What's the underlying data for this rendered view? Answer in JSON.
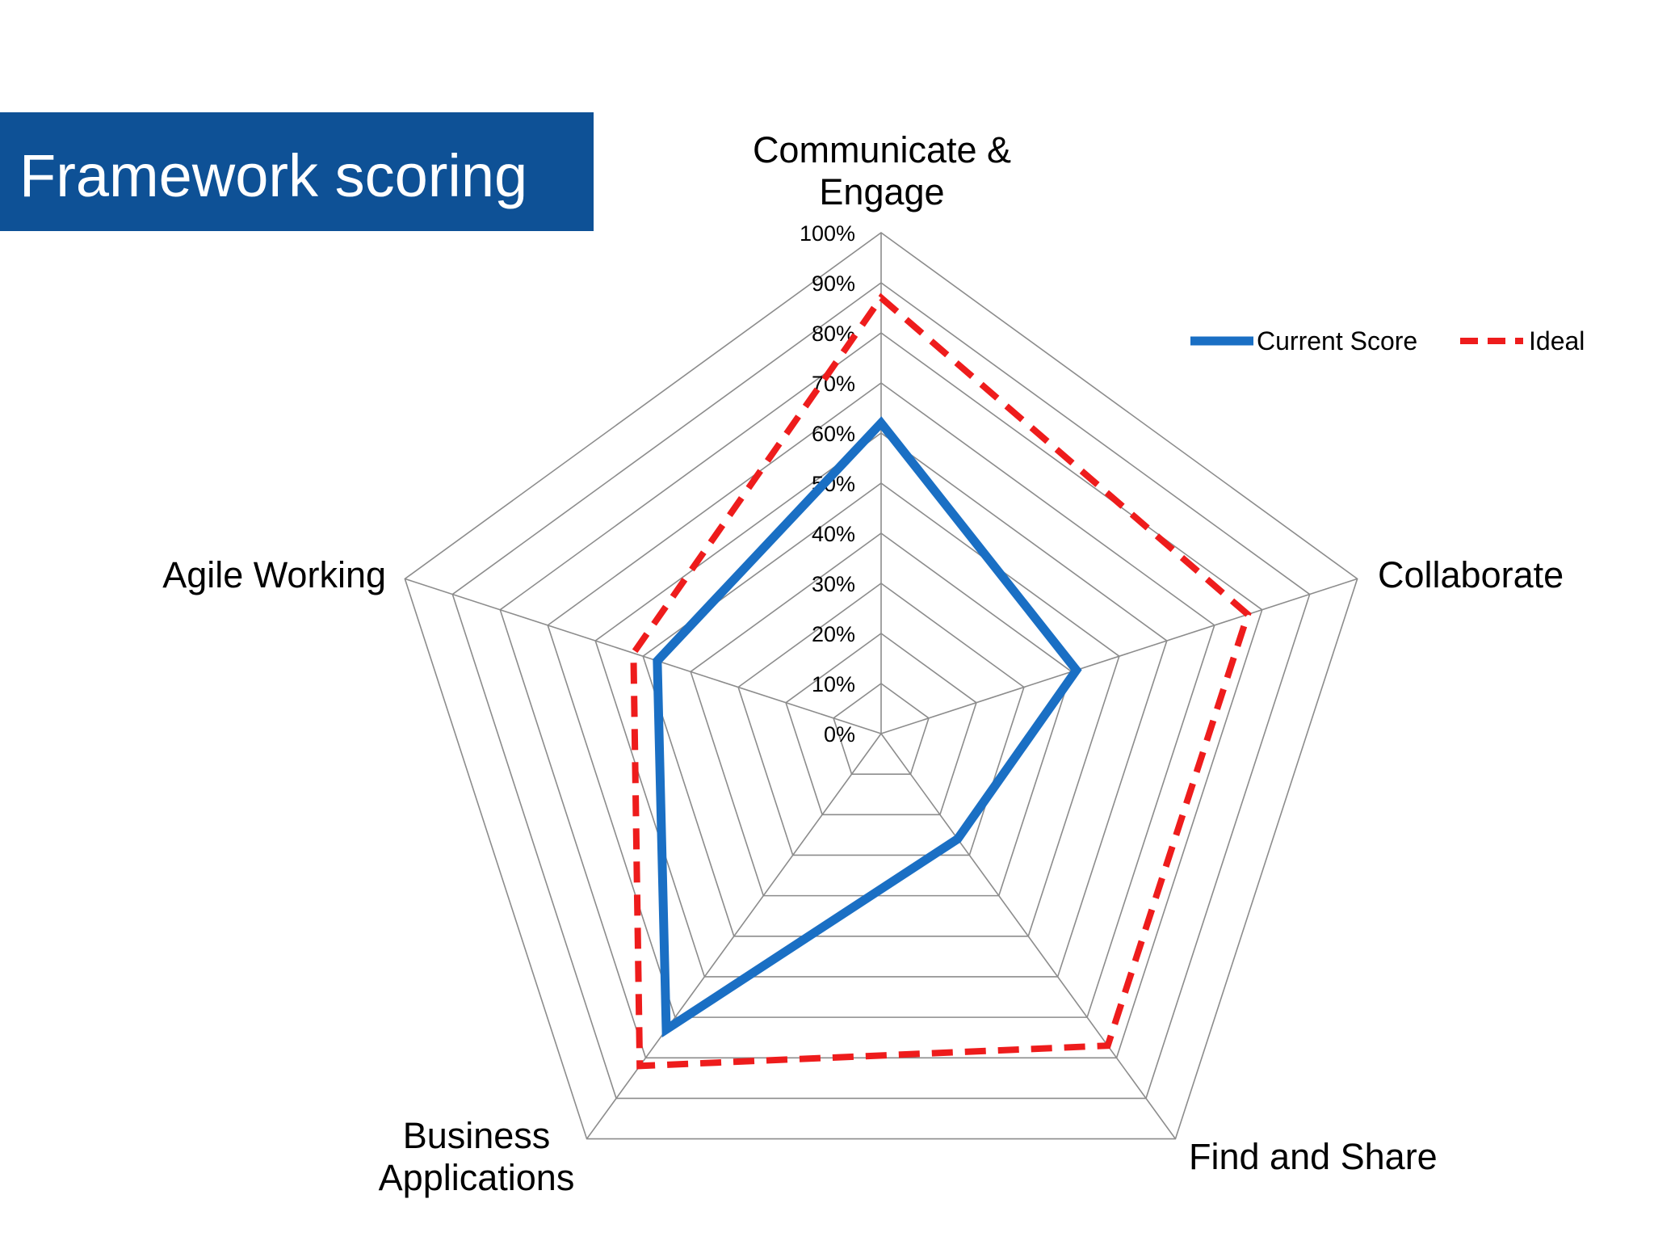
{
  "title": "Framework scoring",
  "colors": {
    "banner": "#0e5196",
    "grid": "#8c8c8c",
    "current": "#1a6fc4",
    "ideal": "#ee1c1c"
  },
  "chart_data": {
    "type": "radar",
    "categories": [
      [
        "Communicate &",
        "Engage"
      ],
      [
        "Collaborate"
      ],
      [
        "Find and Share"
      ],
      [
        "Business",
        "Applications"
      ],
      [
        "Agile Working"
      ]
    ],
    "rlim": [
      0,
      100
    ],
    "ticks": [
      "0%",
      "10%",
      "20%",
      "30%",
      "40%",
      "50%",
      "60%",
      "70%",
      "80%",
      "90%",
      "100%"
    ],
    "grid": true,
    "legend_position": "top-right",
    "series": [
      {
        "name": "Current Score",
        "values": [
          62,
          41,
          26,
          73,
          47
        ],
        "style": "solid"
      },
      {
        "name": "Ideal",
        "values": [
          87,
          77,
          77,
          82,
          52
        ],
        "style": "dashed"
      }
    ]
  }
}
